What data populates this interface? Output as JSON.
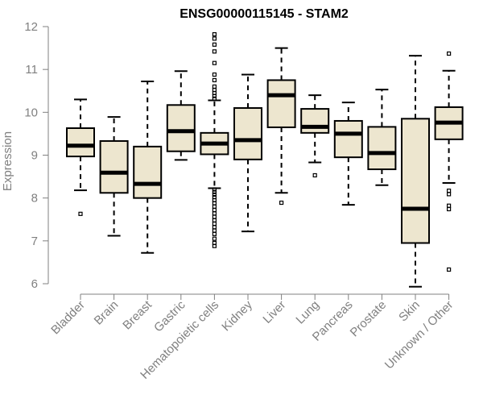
{
  "chart_data": {
    "type": "boxplot",
    "title": "ENSG00000115145 - STAM2",
    "xlabel": "",
    "ylabel": "Expression",
    "ylim": [
      6,
      12
    ],
    "yticks": [
      6,
      7,
      8,
      9,
      10,
      11,
      12
    ],
    "categories": [
      "Bladder",
      "Brain",
      "Breast",
      "Gastric",
      "Hematopoietic cells",
      "Kidney",
      "Liver",
      "Lung",
      "Pancreas",
      "Prostate",
      "Skin",
      "Unknown / Other"
    ],
    "boxes": [
      {
        "q1": 8.97,
        "median": 9.22,
        "q3": 9.63,
        "whisker_low": 8.18,
        "whisker_high": 10.3,
        "outliers": [
          7.63
        ]
      },
      {
        "q1": 8.12,
        "median": 8.59,
        "q3": 9.33,
        "whisker_low": 7.12,
        "whisker_high": 9.89,
        "outliers": []
      },
      {
        "q1": 8.0,
        "median": 8.33,
        "q3": 9.2,
        "whisker_low": 6.72,
        "whisker_high": 10.72,
        "outliers": []
      },
      {
        "q1": 9.09,
        "median": 9.56,
        "q3": 10.17,
        "whisker_low": 8.89,
        "whisker_high": 10.96,
        "outliers": []
      },
      {
        "q1": 9.02,
        "median": 9.27,
        "q3": 9.52,
        "whisker_low": 8.23,
        "whisker_high": 10.28,
        "outliers": [
          11.82,
          11.72,
          11.58,
          11.42,
          11.15,
          10.88,
          10.75,
          10.6,
          10.52,
          10.45,
          10.38,
          10.32,
          8.2,
          8.14,
          8.08,
          8.02,
          7.95,
          7.88,
          7.8,
          7.72,
          7.64,
          7.56,
          7.48,
          7.4,
          7.32,
          7.24,
          7.16,
          7.05,
          6.95,
          6.88
        ]
      },
      {
        "q1": 8.9,
        "median": 9.35,
        "q3": 10.1,
        "whisker_low": 7.22,
        "whisker_high": 10.88,
        "outliers": []
      },
      {
        "q1": 9.65,
        "median": 10.4,
        "q3": 10.75,
        "whisker_low": 8.12,
        "whisker_high": 11.5,
        "outliers": [
          7.89
        ]
      },
      {
        "q1": 9.52,
        "median": 9.66,
        "q3": 10.08,
        "whisker_low": 8.83,
        "whisker_high": 10.4,
        "outliers": [
          8.53
        ]
      },
      {
        "q1": 8.95,
        "median": 9.5,
        "q3": 9.8,
        "whisker_low": 7.84,
        "whisker_high": 10.23,
        "outliers": []
      },
      {
        "q1": 8.67,
        "median": 9.05,
        "q3": 9.66,
        "whisker_low": 8.3,
        "whisker_high": 10.53,
        "outliers": []
      },
      {
        "q1": 6.95,
        "median": 7.75,
        "q3": 9.85,
        "whisker_low": 5.93,
        "whisker_high": 11.32,
        "outliers": []
      },
      {
        "q1": 9.37,
        "median": 9.76,
        "q3": 10.12,
        "whisker_low": 8.35,
        "whisker_high": 10.97,
        "outliers": [
          11.37,
          8.17,
          8.09,
          7.82,
          7.74,
          6.33
        ]
      }
    ],
    "colors": {
      "box_fill": "#ede6cf",
      "box_stroke": "#000000",
      "axis": "#808080"
    }
  }
}
